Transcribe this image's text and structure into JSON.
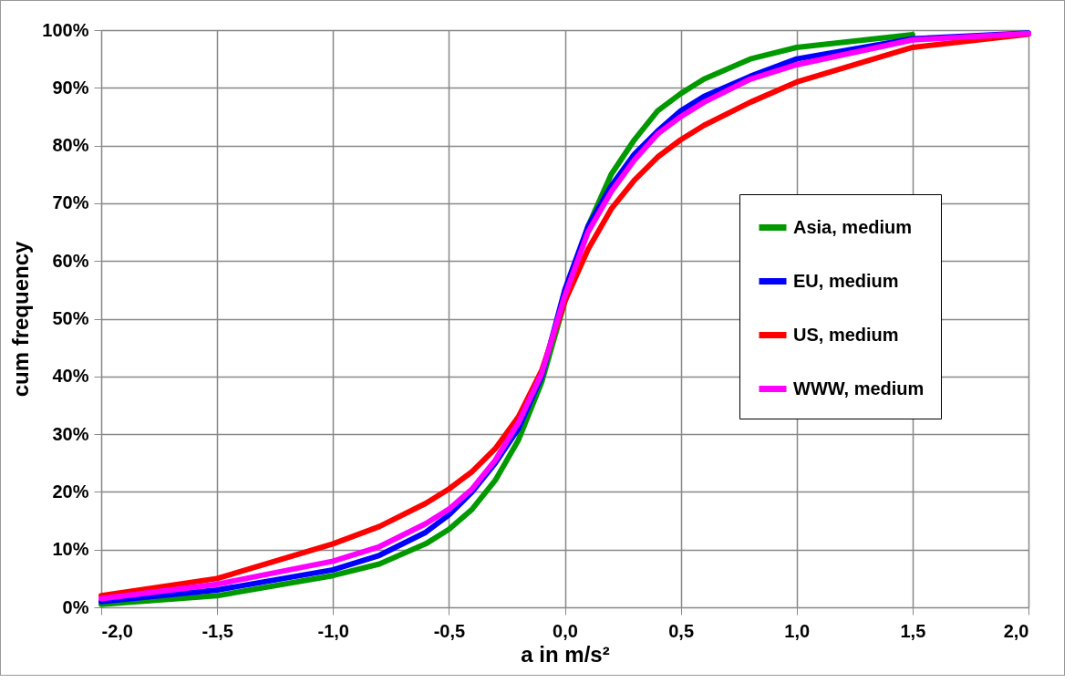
{
  "chart_data": {
    "type": "line",
    "xlabel": "a in m/s²",
    "ylabel": "cum frequency",
    "x": [
      -2.0,
      -1.5,
      -1.0,
      -0.8,
      -0.6,
      -0.5,
      -0.4,
      -0.3,
      -0.2,
      -0.1,
      0.0,
      0.1,
      0.2,
      0.3,
      0.4,
      0.5,
      0.6,
      0.8,
      1.0,
      1.5,
      2.0
    ],
    "series": [
      {
        "name": "Asia, medium",
        "color": "#009900",
        "values": [
          0.5,
          2,
          5.5,
          7.5,
          11,
          13.5,
          17,
          22,
          29,
          39,
          53,
          66,
          75,
          81,
          86,
          89,
          91.5,
          95,
          97,
          99.2,
          null
        ]
      },
      {
        "name": "EU, medium",
        "color": "#0000ff",
        "values": [
          1,
          3,
          6.5,
          9,
          13,
          16,
          20,
          25,
          31,
          40,
          55,
          66,
          73,
          78.5,
          82.5,
          86,
          88.5,
          92,
          95,
          98.5,
          99.5
        ]
      },
      {
        "name": "US, medium",
        "color": "#ff0000",
        "values": [
          2,
          5,
          11,
          14,
          18,
          20.5,
          23.5,
          27.5,
          33,
          41,
          53,
          62,
          69,
          74,
          78,
          81,
          83.5,
          87.5,
          91,
          97,
          99.3
        ]
      },
      {
        "name": "WWW, medium",
        "color": "#ff00ff",
        "values": [
          1.5,
          4,
          8,
          10.5,
          14.5,
          17,
          20.5,
          25.5,
          32,
          40.5,
          54,
          65,
          72,
          77.5,
          82,
          85,
          87.5,
          91.5,
          94,
          98.3,
          99.4
        ]
      }
    ],
    "xlim": [
      -2.0,
      2.0
    ],
    "xticks": [
      {
        "value": -2,
        "label": "-2,0"
      },
      {
        "value": -1.5,
        "label": "-1,5"
      },
      {
        "value": -1,
        "label": "-1,0"
      },
      {
        "value": -0.5,
        "label": "-0,5"
      },
      {
        "value": 0,
        "label": "0,0"
      },
      {
        "value": 0.5,
        "label": "0,5"
      },
      {
        "value": 1,
        "label": "1,0"
      },
      {
        "value": 1.5,
        "label": "1,5"
      },
      {
        "value": 2,
        "label": "2,0"
      }
    ],
    "ylim": [
      0,
      100
    ],
    "yticks": [
      {
        "value": 0,
        "label": "0%"
      },
      {
        "value": 10,
        "label": "10%"
      },
      {
        "value": 20,
        "label": "20%"
      },
      {
        "value": 30,
        "label": "30%"
      },
      {
        "value": 40,
        "label": "40%"
      },
      {
        "value": 50,
        "label": "50%"
      },
      {
        "value": 60,
        "label": "60%"
      },
      {
        "value": 70,
        "label": "70%"
      },
      {
        "value": 80,
        "label": "80%"
      },
      {
        "value": 90,
        "label": "90%"
      },
      {
        "value": 100,
        "label": "100%"
      }
    ],
    "grid": true,
    "legend": "right",
    "line_style": "solid"
  }
}
